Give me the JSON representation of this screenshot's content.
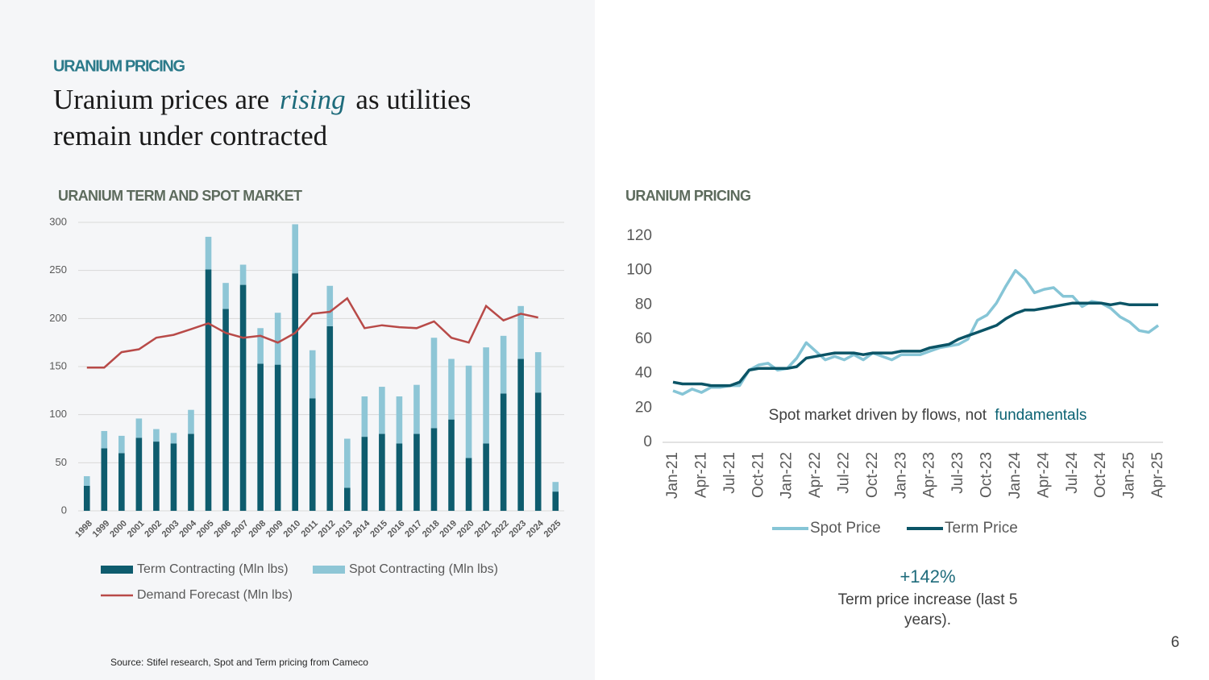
{
  "header": "URANIUM PRICING",
  "title_lines": [
    [
      "Uranium prices are",
      "rising",
      "as utilities"
    ],
    [
      "remain under contracted"
    ]
  ],
  "callout": {
    "value": "+142%",
    "text": [
      "Term price increase (last 5",
      "years)."
    ]
  },
  "source": "Source:  Stifel research, Spot and Term pricing from Cameco",
  "page_number": "6",
  "chart_data": [
    {
      "type": "bar",
      "stacked": true,
      "title": "URANIUM TERM AND SPOT MARKET",
      "categories": [
        "1998",
        "1999",
        "2000",
        "2001",
        "2002",
        "2003",
        "2004",
        "2005",
        "2006",
        "2007",
        "2008",
        "2009",
        "2010",
        "2011",
        "2012",
        "2013",
        "2014",
        "2015",
        "2016",
        "2017",
        "2018",
        "2019",
        "2020",
        "2021",
        "2022",
        "2023",
        "2024",
        "2025"
      ],
      "series": [
        {
          "name": "Term Contracting (Mln lbs)",
          "type": "bar",
          "color": "#0e5c6e",
          "values": [
            26,
            65,
            60,
            76,
            72,
            70,
            80,
            251,
            210,
            235,
            153,
            152,
            247,
            117,
            192,
            24,
            77,
            80,
            70,
            80,
            86,
            95,
            55,
            70,
            122,
            158,
            123,
            20
          ]
        },
        {
          "name": "Spot Contracting (Mln lbs)",
          "type": "bar",
          "color": "#8ec6d6",
          "values": [
            10,
            18,
            18,
            20,
            13,
            11,
            25,
            34,
            27,
            21,
            37,
            54,
            51,
            50,
            42,
            51,
            42,
            49,
            49,
            51,
            94,
            63,
            96,
            100,
            60,
            55,
            42,
            10
          ]
        },
        {
          "name": "Demand Forecast (Mln lbs)",
          "type": "line",
          "color": "#b84a48",
          "values": [
            149,
            149,
            165,
            168,
            180,
            183,
            189,
            195,
            185,
            180,
            182,
            175,
            185,
            205,
            207,
            221,
            190,
            193,
            191,
            190,
            197,
            180,
            175,
            213,
            198,
            205,
            201,
            null
          ]
        }
      ],
      "ylim": [
        0,
        300
      ],
      "yticks": [
        0,
        50,
        100,
        150,
        200,
        250,
        300
      ],
      "grid": true
    },
    {
      "type": "line",
      "title": "URANIUM PRICING",
      "annotation": [
        "Spot market driven by flows, not",
        "fundamentals"
      ],
      "categories": [
        "Jan-21",
        null,
        null,
        "Apr-21",
        null,
        null,
        "Jul-21",
        null,
        null,
        "Oct-21",
        null,
        null,
        "Jan-22",
        null,
        null,
        "Apr-22",
        null,
        null,
        "Jul-22",
        null,
        null,
        "Oct-22",
        null,
        null,
        "Jan-23",
        null,
        null,
        "Apr-23",
        null,
        null,
        "Jul-23",
        null,
        null,
        "Oct-23",
        null,
        null,
        "Jan-24",
        null,
        null,
        "Apr-24",
        null,
        null,
        "Jul-24",
        null,
        null,
        "Oct-24",
        null,
        null,
        "Jan-25",
        null,
        null,
        "Apr-25"
      ],
      "series": [
        {
          "name": "Spot Price",
          "color": "#86c5d6",
          "values": [
            30,
            28,
            31,
            29,
            32,
            32,
            33,
            33,
            42,
            45,
            46,
            42,
            43,
            49,
            58,
            53,
            48,
            50,
            48,
            51,
            48,
            52,
            50,
            48,
            51,
            51,
            51,
            53,
            55,
            56,
            57,
            60,
            71,
            74,
            81,
            91,
            100,
            95,
            87,
            89,
            90,
            85,
            85,
            79,
            82,
            81,
            78,
            73,
            70,
            65,
            64,
            68
          ]
        },
        {
          "name": "Term Price",
          "color": "#0b5466",
          "values": [
            35,
            34,
            34,
            34,
            33,
            33,
            33,
            35,
            42,
            43,
            43,
            43,
            43,
            44,
            49,
            50,
            51,
            52,
            52,
            52,
            51,
            52,
            52,
            52,
            53,
            53,
            53,
            55,
            56,
            57,
            60,
            62,
            64,
            66,
            68,
            72,
            75,
            77,
            77,
            78,
            79,
            80,
            81,
            81,
            81,
            81,
            80,
            81,
            80,
            80,
            80,
            80
          ]
        }
      ],
      "ylim": [
        0,
        120
      ],
      "yticks": [
        0,
        20,
        40,
        60,
        80,
        100,
        120
      ],
      "grid": false
    }
  ]
}
